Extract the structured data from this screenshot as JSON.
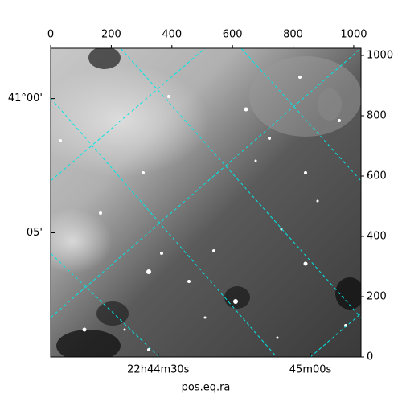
{
  "chart_data": {
    "type": "image",
    "xlabel": "pos.eq.ra",
    "xlim": [
      0,
      1024
    ],
    "ylim": [
      0,
      1024
    ],
    "xticks": [
      0,
      200,
      400,
      600,
      800,
      1000
    ],
    "yticks": [
      0,
      200,
      400,
      600,
      800,
      1000
    ],
    "dec_ticks": [
      {
        "value": 857,
        "label": "41°00'"
      },
      {
        "value": 412,
        "label": "05'"
      }
    ],
    "ra_ticks": [
      {
        "value": 355,
        "label": "22h44m30s"
      },
      {
        "value": 857,
        "label": "45m00s"
      }
    ]
  }
}
